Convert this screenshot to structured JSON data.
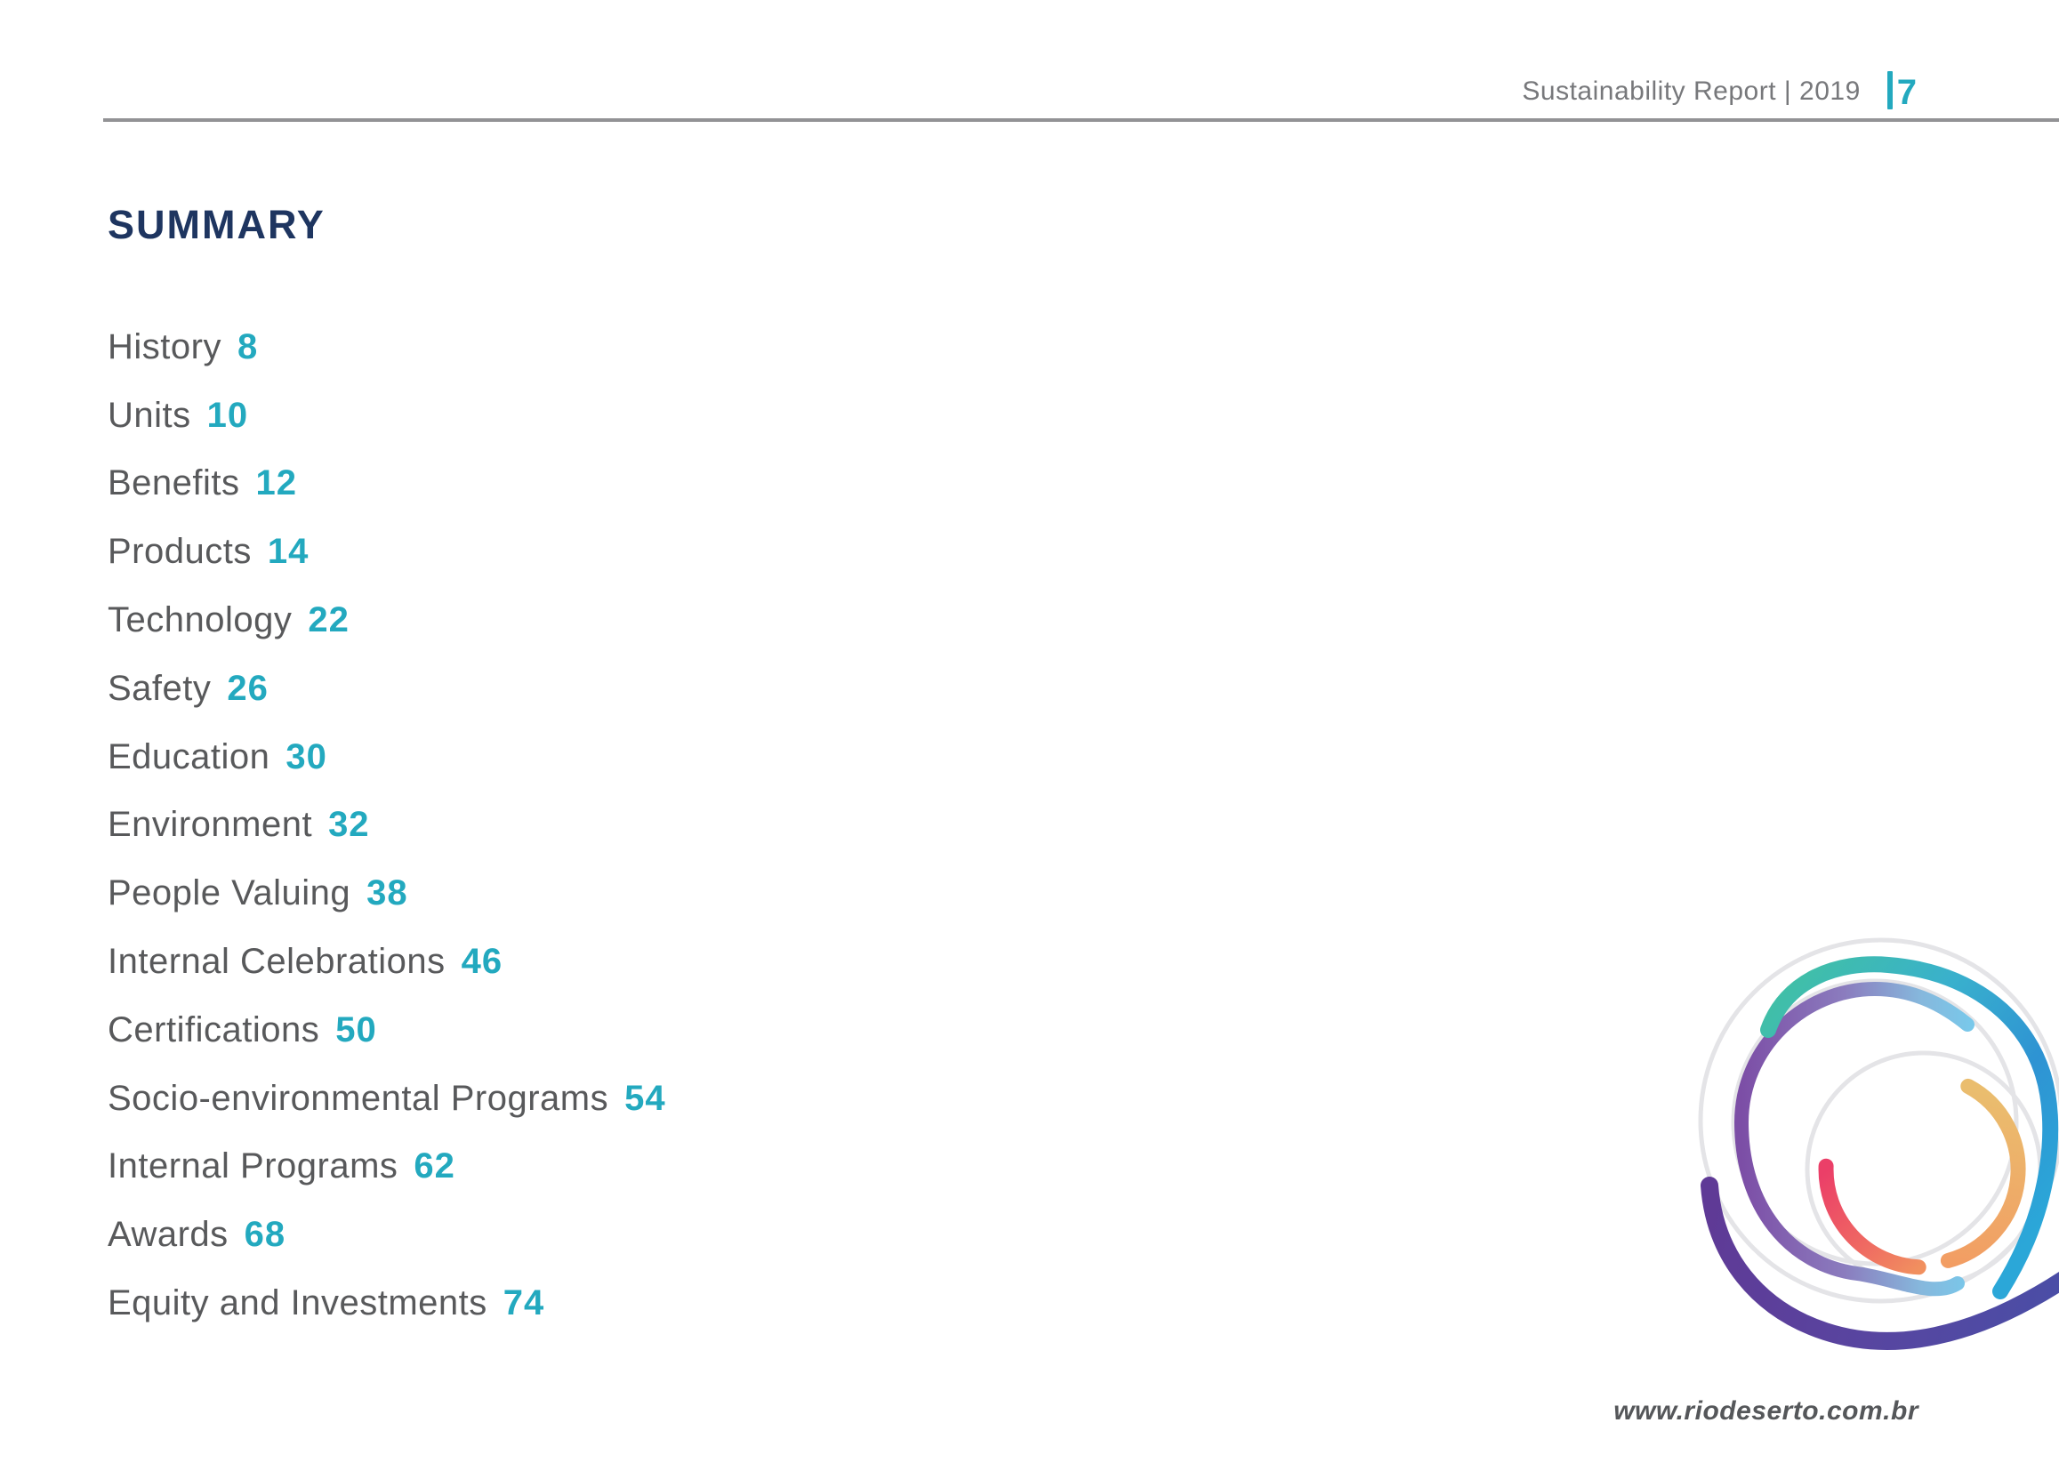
{
  "header": {
    "title": "Sustainability Report | 2019",
    "page_number": "7"
  },
  "summary": {
    "title": "SUMMARY",
    "items": [
      {
        "label": "History",
        "page": "8"
      },
      {
        "label": "Units",
        "page": "10"
      },
      {
        "label": "Benefits",
        "page": "12"
      },
      {
        "label": "Products",
        "page": "14"
      },
      {
        "label": "Technology",
        "page": "22"
      },
      {
        "label": "Safety",
        "page": "26"
      },
      {
        "label": "Education",
        "page": "30"
      },
      {
        "label": "Environment",
        "page": "32"
      },
      {
        "label": "People Valuing",
        "page": "38"
      },
      {
        "label": "Internal Celebrations",
        "page": "46"
      },
      {
        "label": "Certifications",
        "page": "50"
      },
      {
        "label": "Socio-environmental Programs",
        "page": "54"
      },
      {
        "label": "Internal Programs",
        "page": "62"
      },
      {
        "label": "Awards",
        "page": "68"
      },
      {
        "label": "Equity and Investments",
        "page": "74"
      }
    ]
  },
  "footer": {
    "website": "www.riodeserto.com.br"
  },
  "logo": {
    "name": "rio-deserto-circular-mark"
  },
  "colors": {
    "accent_teal": "#23a9bf",
    "title_navy": "#1e3560",
    "text_gray": "#58595b",
    "header_gray": "#77787b",
    "rule_gray": "#929295",
    "logo_ring_gray": "#e4e4e7",
    "logo_teal": "#41c0a5",
    "logo_blue": "#2e93d3",
    "logo_cyan": "#2ba7d8",
    "logo_purple": "#7c4ea6",
    "logo_light_blue": "#79c8ea",
    "logo_dark_purple": "#5f3a96",
    "logo_indigo": "#4a4ea6",
    "logo_orange": "#eabd6e",
    "logo_pink": "#eb3f68"
  }
}
